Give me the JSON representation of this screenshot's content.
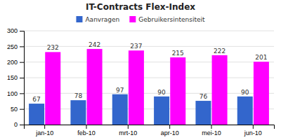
{
  "chart_data": {
    "type": "bar",
    "title": "IT-Contracts Flex-Index",
    "categories": [
      "jan-10",
      "feb-10",
      "mrt-10",
      "apr-10",
      "mei-10",
      "jun-10"
    ],
    "series": [
      {
        "name": "Aanvragen",
        "color": "#3366cc",
        "values": [
          67,
          78,
          97,
          90,
          76,
          90
        ]
      },
      {
        "name": "Gebruikersintensiteit",
        "color": "#ff00ff",
        "values": [
          232,
          242,
          237,
          215,
          222,
          201
        ]
      }
    ],
    "ylim": [
      0,
      300
    ],
    "yticks": [
      0,
      50,
      100,
      150,
      200,
      250,
      300
    ],
    "grid": true,
    "legend": "top",
    "data_labels": true
  }
}
